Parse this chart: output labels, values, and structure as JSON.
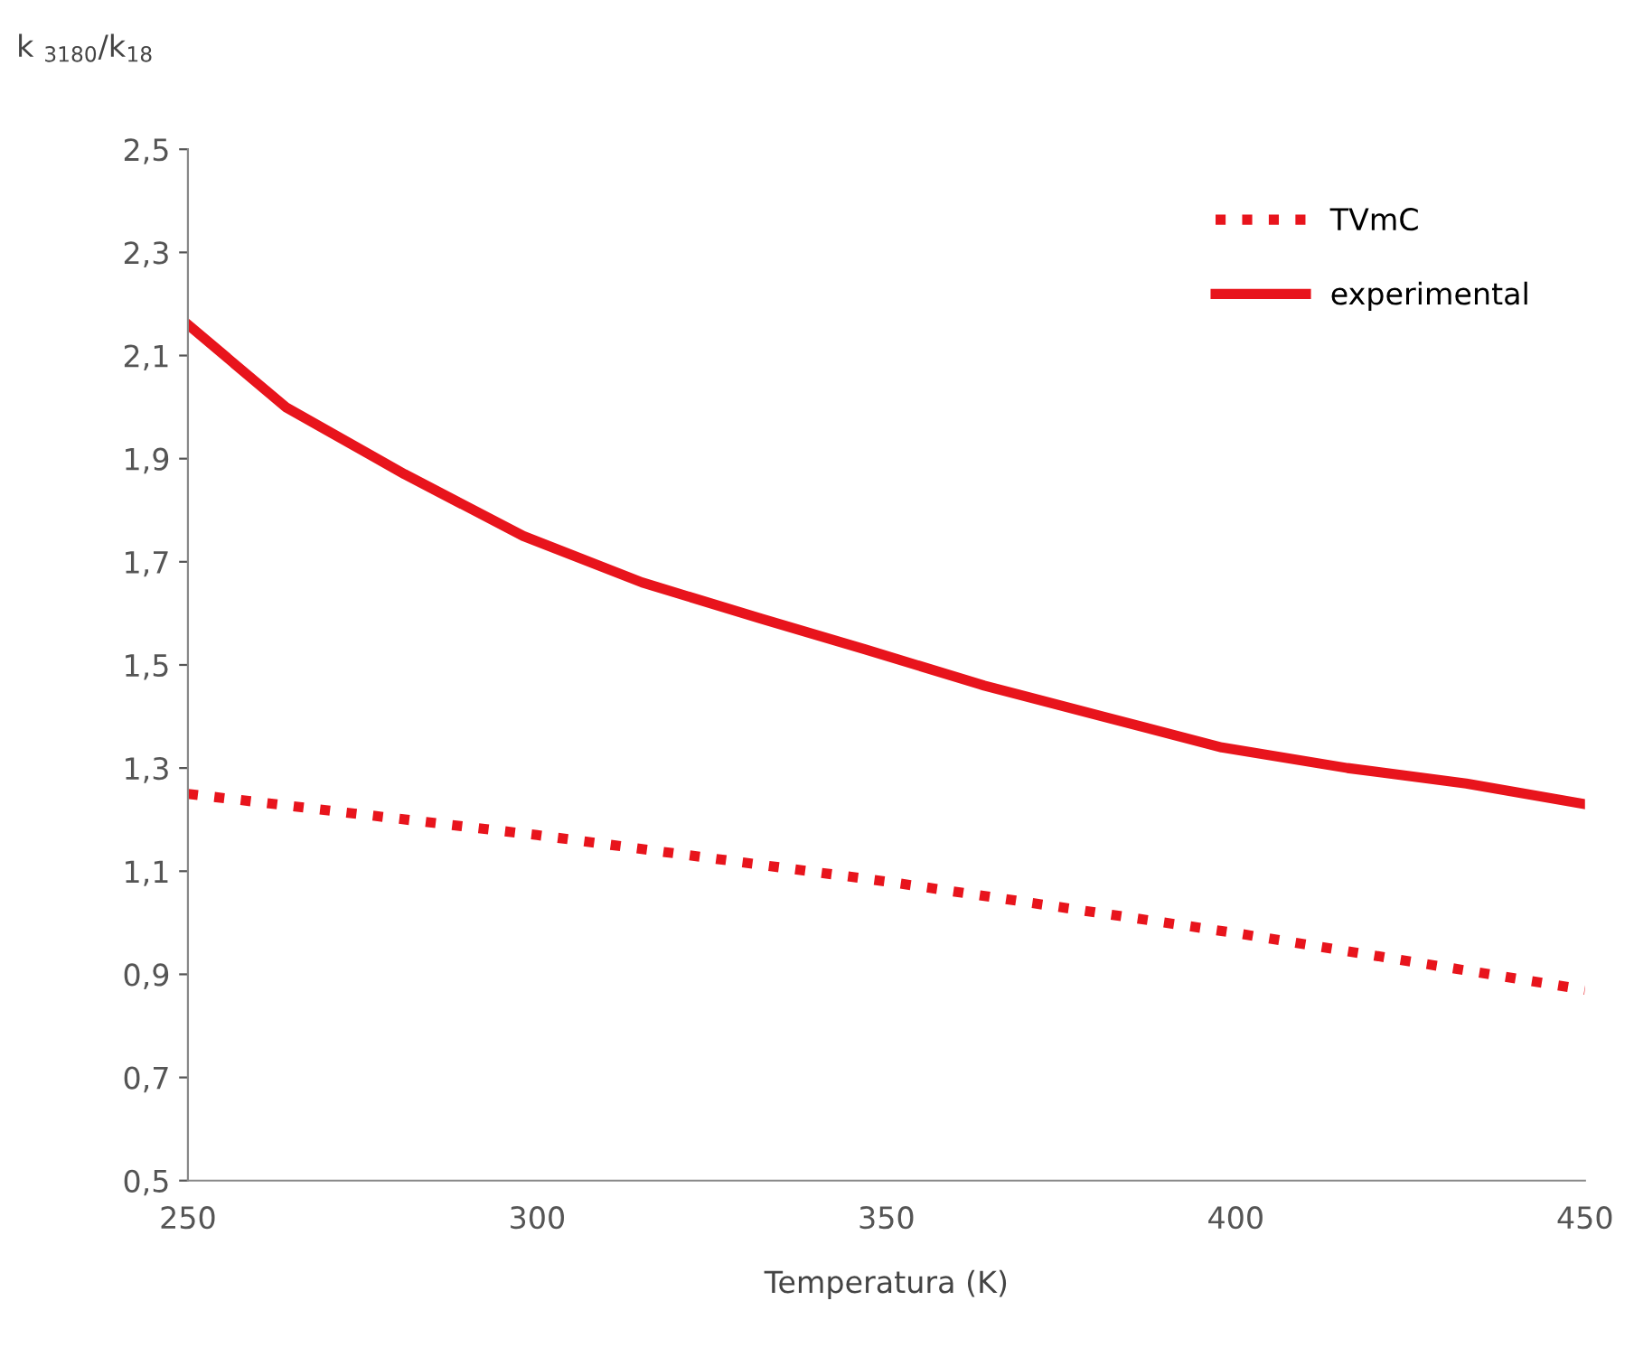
{
  "chart_data": {
    "type": "line",
    "xlabel": "Temperatura (K)",
    "ylabel": "k $_{3180}$/k$_{18}$",
    "xlim": [
      250,
      450
    ],
    "xticks": [
      250,
      300,
      350,
      400,
      450
    ],
    "ylim": [
      0.5,
      2.5
    ],
    "yticks": [
      {
        "value": 0.5,
        "label": "0,5"
      },
      {
        "value": 0.7,
        "label": "0,7"
      },
      {
        "value": 0.9,
        "label": "0,9"
      },
      {
        "value": 1.1,
        "label": "1,1"
      },
      {
        "value": 1.3,
        "label": "1,3"
      },
      {
        "value": 1.5,
        "label": "1,5"
      },
      {
        "value": 1.7,
        "label": "1,7"
      },
      {
        "value": 1.9,
        "label": "1,9"
      },
      {
        "value": 2.1,
        "label": "2,1"
      },
      {
        "value": 2.3,
        "label": "2,3"
      },
      {
        "value": 2.5,
        "label": "2,5"
      }
    ],
    "grid": false,
    "legend": "top right",
    "series": [
      {
        "name": "TVmC",
        "color": "#e8141c",
        "line_style": "dotted",
        "x": [
          250,
          300,
          350,
          400,
          450
        ],
        "values": [
          1.25,
          1.17,
          1.08,
          0.98,
          0.87
        ]
      },
      {
        "name": "experimental",
        "color": "#e8141c",
        "line_style": "solid",
        "x": [
          250,
          264,
          281,
          298,
          315,
          332,
          347,
          364,
          381,
          398,
          416,
          433,
          450
        ],
        "values": [
          2.16,
          2.0,
          1.87,
          1.75,
          1.66,
          1.59,
          1.53,
          1.46,
          1.4,
          1.34,
          1.3,
          1.27,
          1.23
        ]
      }
    ]
  }
}
